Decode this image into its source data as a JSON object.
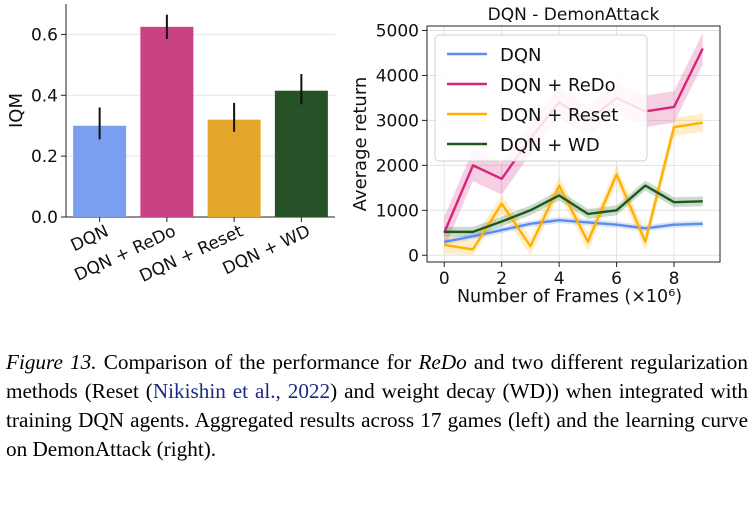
{
  "chart_data": [
    {
      "type": "bar",
      "title": "",
      "ylabel": "IQM",
      "xlabel": "",
      "ylim": [
        0,
        0.7
      ],
      "yticks": [
        "0.0",
        "0.2",
        "0.4",
        "0.6"
      ],
      "categories": [
        "DQN",
        "DQN + ReDo",
        "DQN + Reset",
        "DQN + WD"
      ],
      "values": [
        0.3,
        0.625,
        0.32,
        0.415
      ],
      "ci_low": [
        0.255,
        0.585,
        0.28,
        0.37
      ],
      "ci_high": [
        0.36,
        0.665,
        0.375,
        0.47
      ],
      "colors": [
        "#7b9ef0",
        "#c94283",
        "#e4a62a",
        "#265227"
      ],
      "grid": true
    },
    {
      "type": "line",
      "title": "DQN - DemonAttack",
      "xlabel": "Number of Frames (×10⁶)",
      "ylabel": "Average return",
      "xlim": [
        -0.6,
        9.6
      ],
      "ylim": [
        -150,
        5100
      ],
      "xticks": [
        "0",
        "2",
        "4",
        "6",
        "8"
      ],
      "yticks": [
        "0",
        "1000",
        "2000",
        "3000",
        "4000",
        "5000"
      ],
      "grid": true,
      "legend_position": "upper-left",
      "x": [
        0,
        1,
        2,
        3,
        4,
        5,
        6,
        7,
        8,
        9
      ],
      "series": [
        {
          "name": "DQN",
          "color": "#5b8cf2",
          "values": [
            300,
            420,
            560,
            700,
            780,
            730,
            680,
            600,
            680,
            700
          ],
          "band": 70
        },
        {
          "name": "DQN + ReDo",
          "color": "#d6257c",
          "values": [
            500,
            2000,
            1700,
            2600,
            3400,
            3000,
            3500,
            3200,
            3300,
            4600
          ],
          "band": 350
        },
        {
          "name": "DQN + Reset",
          "color": "#ffb000",
          "values": [
            230,
            130,
            1150,
            200,
            1550,
            300,
            1800,
            300,
            2850,
            2950
          ],
          "band": 200
        },
        {
          "name": "DQN + WD",
          "color": "#1c5a1c",
          "values": [
            520,
            520,
            750,
            1000,
            1330,
            920,
            1000,
            1550,
            1180,
            1200
          ],
          "band": 110
        }
      ]
    }
  ],
  "caption": {
    "label": "Figure 13.",
    "text_1": " Comparison of the performance for ",
    "redo": "ReDo",
    "text_2": " and two different regularization methods (Reset (",
    "citation": "Nikishin et al., 2022",
    "text_3": ") and weight decay (WD)) when integrated with training DQN agents. Aggregated results across 17 games (left) and the learning curve on DemonAttack (right)."
  }
}
